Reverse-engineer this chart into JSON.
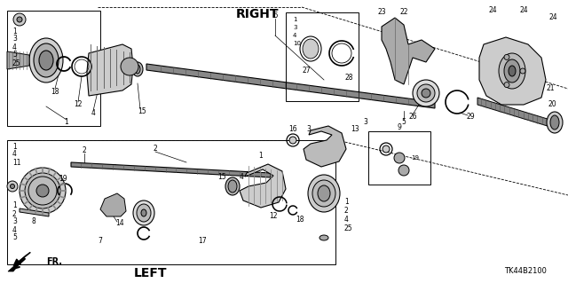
{
  "background_color": "#ffffff",
  "diagram_code": "TK44B2100",
  "label_right": "RIGHT",
  "label_left": "LEFT",
  "label_fr": "FR.",
  "fig_width": 6.4,
  "fig_height": 3.19,
  "dpi": 100
}
